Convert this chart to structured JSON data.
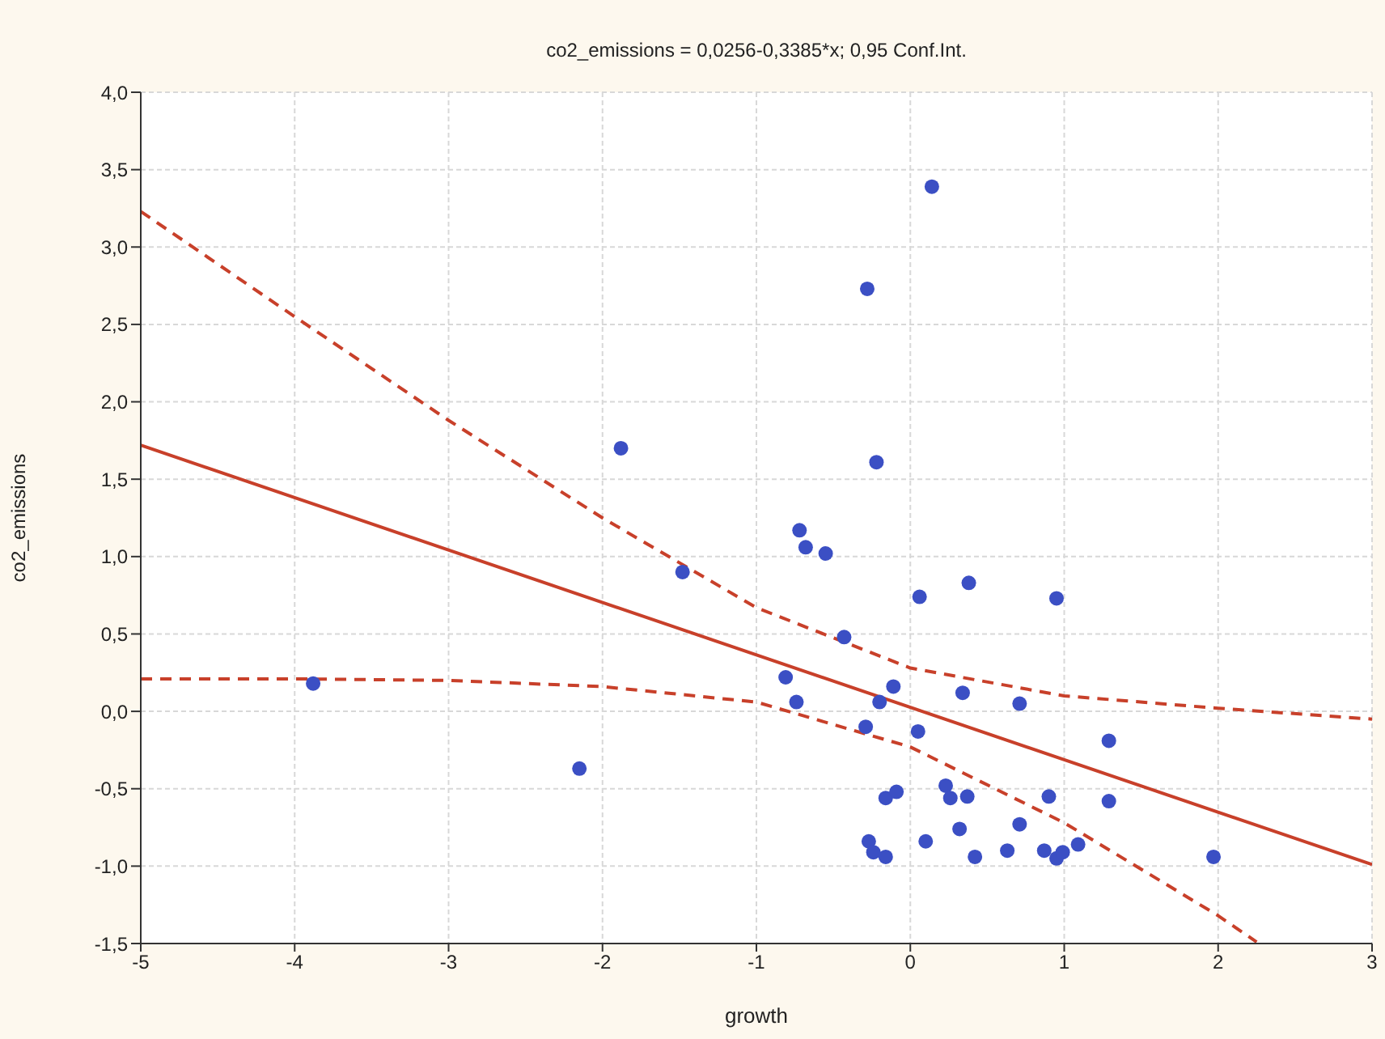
{
  "chart_data": {
    "type": "scatter",
    "title": "co2_emissions = 0,0256-0,3385*x; 0,95 Conf.Int.",
    "xlabel": "growth",
    "ylabel": "co2_emissions",
    "xlim": [
      -5,
      3
    ],
    "xticks": [
      -5,
      -4,
      -3,
      -2,
      -1,
      0,
      1,
      2,
      3
    ],
    "ylim": [
      -1.5,
      4
    ],
    "yticks": [
      {
        "value": -1.5,
        "label": "-1,5"
      },
      {
        "value": -1,
        "label": "-1,0"
      },
      {
        "value": -0.5,
        "label": "-0,5"
      },
      {
        "value": 0,
        "label": "0,0"
      },
      {
        "value": 0.5,
        "label": "0,5"
      },
      {
        "value": 1,
        "label": "1,0"
      },
      {
        "value": 1.5,
        "label": "1,5"
      },
      {
        "value": 2,
        "label": "2,0"
      },
      {
        "value": 2.5,
        "label": "2,5"
      },
      {
        "value": 3,
        "label": "3,0"
      },
      {
        "value": 3.5,
        "label": "3,5"
      },
      {
        "value": 4,
        "label": "4,0"
      }
    ],
    "grid": true,
    "marker": "circle",
    "series": [
      {
        "color": "#3b4fc4",
        "x": [
          -3.88,
          -2.15,
          -1.88,
          -1.48,
          -0.72,
          -0.68,
          -0.55,
          -0.43,
          -0.28,
          -0.22,
          0.14,
          0.06,
          0.38,
          0.95,
          -0.81,
          -0.74,
          -0.11,
          -0.2,
          0.34,
          0.71,
          -0.29,
          0.05,
          1.29,
          -0.16,
          -0.09,
          0.23,
          0.26,
          0.37,
          0.9,
          1.29,
          0.32,
          0.71,
          -0.27,
          -0.24,
          -0.16,
          0.1,
          0.42,
          0.63,
          0.87,
          0.95,
          0.99,
          1.09,
          1.97
        ],
        "values": [
          0.18,
          -0.37,
          1.7,
          0.9,
          1.17,
          1.06,
          1.02,
          0.48,
          2.73,
          1.61,
          3.39,
          0.74,
          0.83,
          0.73,
          0.22,
          0.06,
          0.16,
          0.06,
          0.12,
          0.05,
          -0.1,
          -0.13,
          -0.19,
          -0.56,
          -0.52,
          -0.48,
          -0.56,
          -0.55,
          -0.55,
          -0.58,
          -0.76,
          -0.73,
          -0.84,
          -0.91,
          -0.94,
          -0.84,
          -0.94,
          -0.9,
          -0.9,
          -0.95,
          -0.91,
          -0.86,
          -0.94
        ]
      },
      {
        "type": "line",
        "color": "#c8402a",
        "marker": "none",
        "line_style": "solid",
        "x": [
          -5,
          3
        ],
        "values": [
          1.72,
          -0.99
        ]
      },
      {
        "type": "line",
        "color": "#c8402a",
        "marker": "none",
        "line_style": "dashed",
        "x": [
          -5,
          -4,
          -3,
          -2,
          -1,
          0,
          1,
          2,
          3
        ],
        "values": [
          3.23,
          2.55,
          1.88,
          1.25,
          0.67,
          0.28,
          0.1,
          0.02,
          -0.05
        ]
      },
      {
        "type": "line",
        "color": "#c8402a",
        "marker": "none",
        "line_style": "dashed",
        "x": [
          -5,
          -4,
          -3,
          -2,
          -1,
          0,
          1,
          2,
          2.25
        ],
        "values": [
          0.21,
          0.21,
          0.2,
          0.16,
          0.06,
          -0.23,
          -0.72,
          -1.32,
          -1.49
        ]
      }
    ]
  }
}
